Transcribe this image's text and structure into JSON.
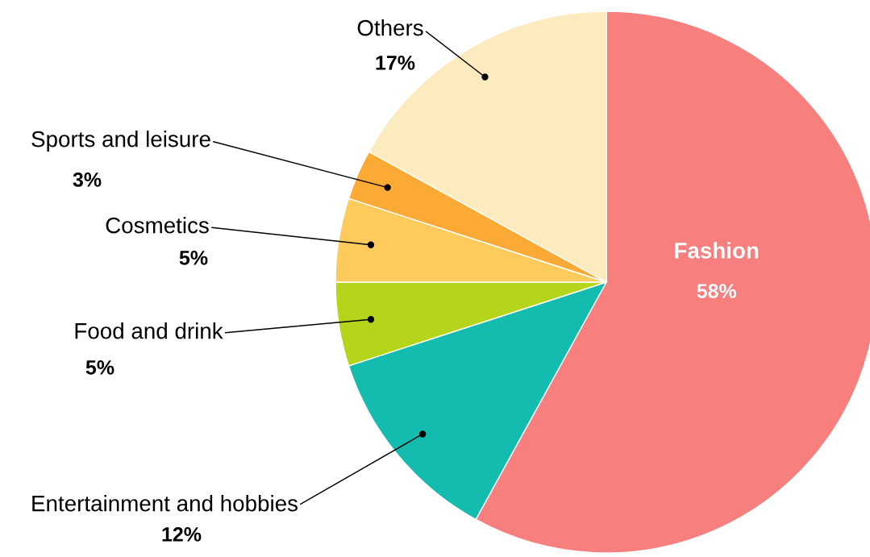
{
  "chart_data": {
    "type": "pie",
    "categories": [
      "Fashion",
      "Entertainment and hobbies",
      "Food and drink",
      "Cosmetics",
      "Sports and leisure",
      "Others"
    ],
    "values": [
      58,
      12,
      5,
      5,
      3,
      17
    ],
    "colors": [
      "#f77f7e",
      "#14bcaf",
      "#b5d51a",
      "#fccb5c",
      "#fbab35",
      "#fdebc0"
    ],
    "value_labels": [
      "58%",
      "12%",
      "5%",
      "5%",
      "3%",
      "17%"
    ]
  }
}
